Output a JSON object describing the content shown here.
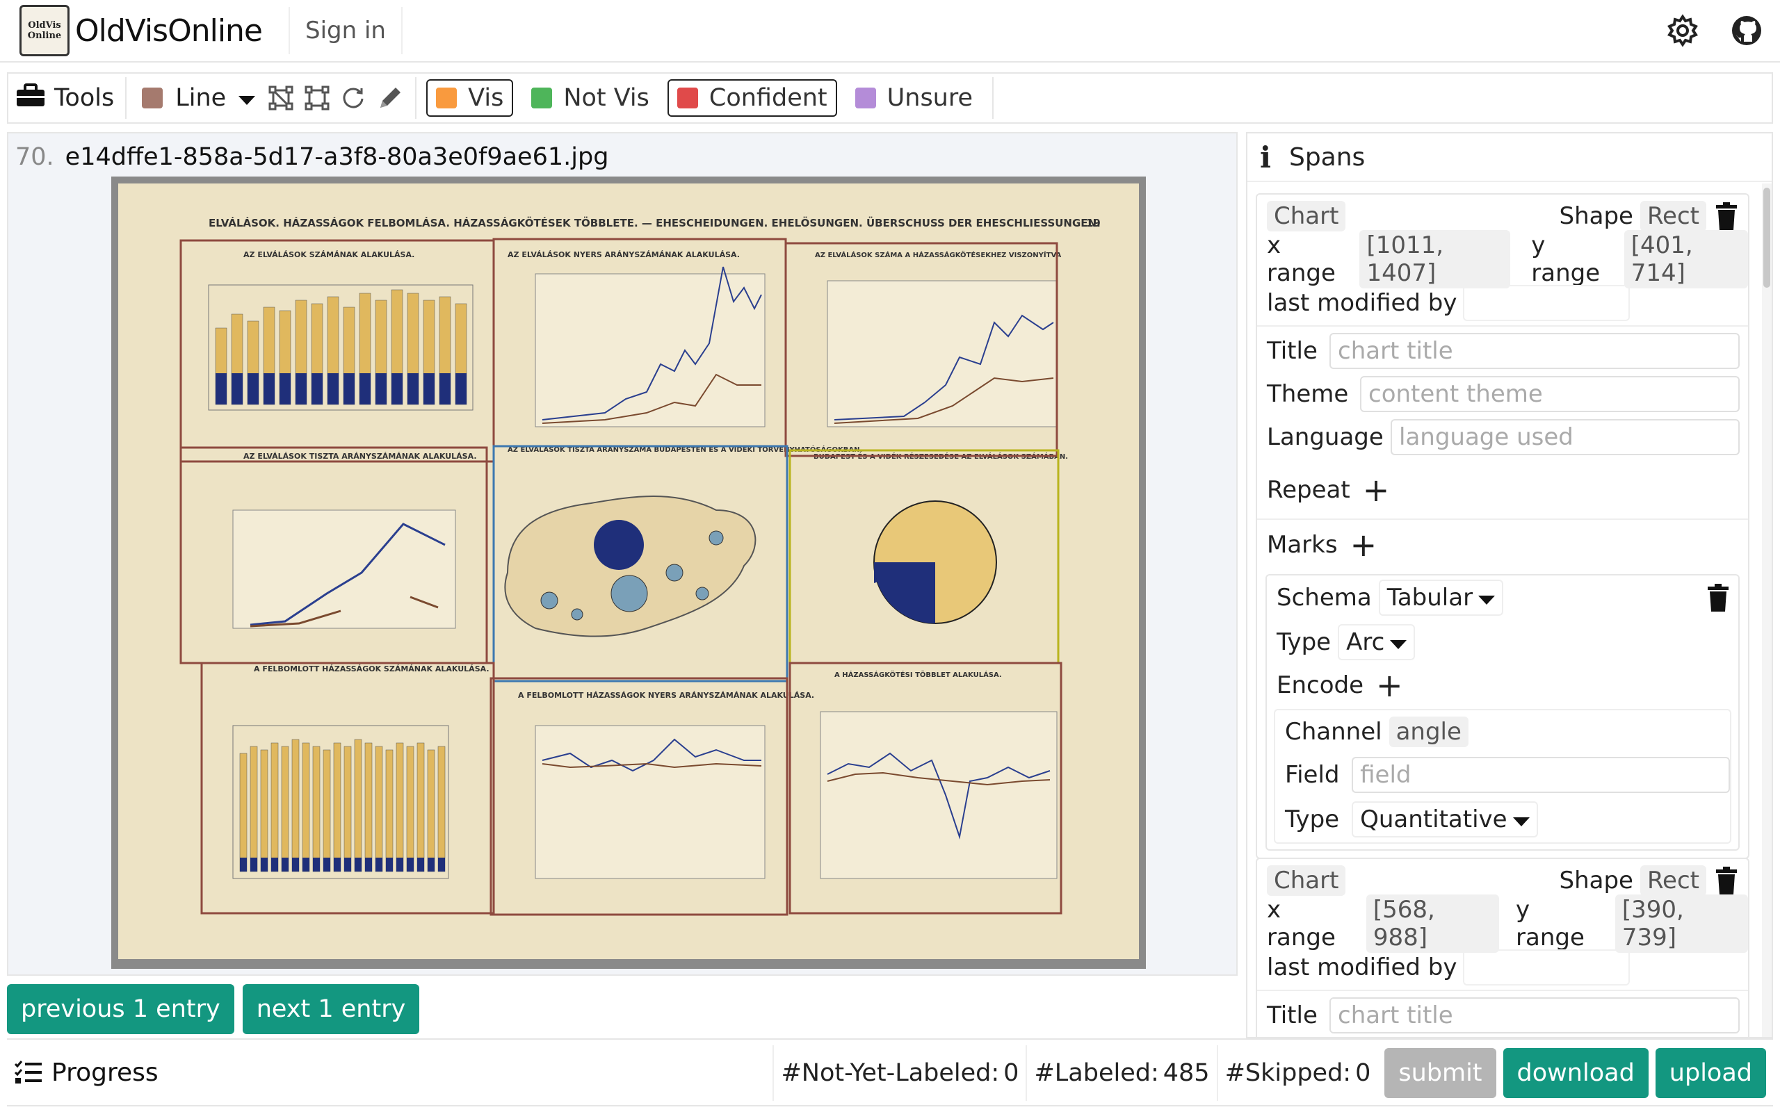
{
  "app": {
    "title": "OldVisOnline",
    "logo_text_1": "OldVis",
    "logo_text_2": "Online",
    "signin": "Sign in"
  },
  "icons": {
    "settings": "gear-icon",
    "github": "github-icon"
  },
  "toolbar": {
    "tools_label": "Tools",
    "line_label": "Line",
    "line_color": "#a57a6e",
    "tags": [
      {
        "label": "Vis",
        "color": "#f99a3e",
        "selected": true
      },
      {
        "label": "Not Vis",
        "color": "#4eb55a",
        "selected": false
      },
      {
        "label": "Confident",
        "color": "#e04a4a",
        "selected": true
      },
      {
        "label": "Unsure",
        "color": "#b48cd8",
        "selected": false
      }
    ]
  },
  "file": {
    "index": "70.",
    "name": "e14dffe1-858a-5d17-a3f8-80a3e0f9ae61.jpg"
  },
  "document": {
    "header": "ELVÁLÁSOK. HÁZASSÁGOK FELBOMLÁSA. HÁZASSÁGKÖTÉSEK TÖBBLETE. — EHESCHEIDUNGEN. EHELÖSUNGEN. ÜBERSCHUSS DER EHESCHLIESSUNGEN.",
    "page_number": "19",
    "panel_titles": [
      "AZ ELVÁLÁSOK SZÁMÁNAK ALAKULÁSA.",
      "AZ ELVÁLÁSOK NYERS ARÁNYSZÁMÁNAK ALAKULÁSA.",
      "AZ ELVÁLÁSOK SZÁMA A HÁZASSÁGKÖTÉSEKHEZ VISZONYÍTVA",
      "AZ ELVÁLÁSOK TISZTA ARÁNYSZÁMÁNAK ALAKULÁSA.",
      "AZ ELVÁLÁSOK TISZTA ARÁNYSZÁMA BUDAPESTEN ÉS A VIDÉKI TÖRVÉNYHATÓSÁGOKBAN.",
      "BUDAPEST ÉS A VIDÉK RÉSZESEDÉSE AZ ELVÁLÁSOK SZÁMÁBAN.",
      "A FELBOMLOTT HÁZASSÁGOK SZÁMÁNAK ALAKULÁSA.",
      "A FELBOMLOTT HÁZASSÁGOK NYERS ARÁNYSZÁMÁNAK ALAKULÁSA.",
      "A HÁZASSÁGKÖTÉSI TÖBBLET ALAKULÁSA."
    ]
  },
  "nav": {
    "prev": "previous 1 entry",
    "next": "next 1 entry"
  },
  "spans": {
    "title": "Spans",
    "cards": [
      {
        "chart": "Chart",
        "shape_label": "Shape",
        "shape": "Rect",
        "x_label": "x range",
        "x_range": "[1011, 1407]",
        "y_label": "y range",
        "y_range": "[401, 714]",
        "modified_label": "last modified by",
        "modified_value": "",
        "title_label": "Title",
        "title_placeholder": "chart title",
        "theme_label": "Theme",
        "theme_placeholder": "content theme",
        "language_label": "Language",
        "language_placeholder": "language used",
        "repeat_label": "Repeat",
        "marks_label": "Marks",
        "schema_label": "Schema",
        "schema_value": "Tabular",
        "type_label": "Type",
        "type_value": "Arc",
        "encode_label": "Encode",
        "channel_label": "Channel",
        "channel_value": "angle",
        "field_label": "Field",
        "field_placeholder": "field",
        "enc_type_label": "Type",
        "enc_type_value": "Quantitative"
      },
      {
        "chart": "Chart",
        "shape_label": "Shape",
        "shape": "Rect",
        "x_label": "x range",
        "x_range": "[568, 988]",
        "y_label": "y range",
        "y_range": "[390, 739]",
        "modified_label": "last modified by",
        "modified_value": "",
        "title_label": "Title",
        "title_placeholder": "chart title"
      }
    ]
  },
  "progress": {
    "label": "Progress",
    "not_yet_label": "#Not-Yet-Labeled:",
    "not_yet": "0",
    "labeled_label": "#Labeled:",
    "labeled": "485",
    "skipped_label": "#Skipped:",
    "skipped": "0",
    "submit": "submit",
    "download": "download",
    "upload": "upload",
    "submit_color": "#b5b5b5",
    "accent_color": "#139780"
  }
}
